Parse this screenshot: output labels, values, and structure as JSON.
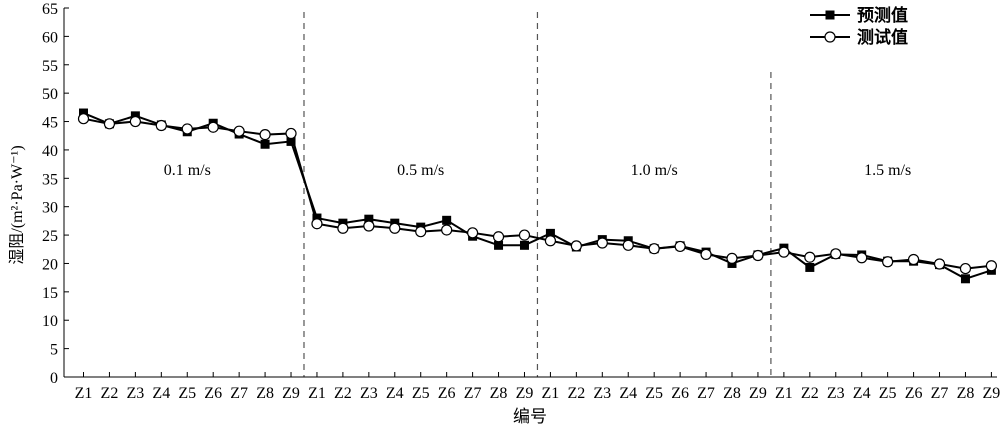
{
  "chart_data": {
    "type": "line",
    "xlabel": "编号",
    "ylabel": "湿阻/(m²·Pa·W⁻¹)",
    "ylim": [
      0,
      65
    ],
    "yticks": [
      0,
      5,
      10,
      15,
      20,
      25,
      30,
      35,
      40,
      45,
      50,
      55,
      60,
      65
    ],
    "categories": [
      "Z1",
      "Z2",
      "Z3",
      "Z4",
      "Z5",
      "Z6",
      "Z7",
      "Z8",
      "Z9",
      "Z1",
      "Z2",
      "Z3",
      "Z4",
      "Z5",
      "Z6",
      "Z7",
      "Z8",
      "Z9",
      "Z1",
      "Z2",
      "Z3",
      "Z4",
      "Z5",
      "Z6",
      "Z7",
      "Z8",
      "Z9",
      "Z1",
      "Z2",
      "Z3",
      "Z4",
      "Z5",
      "Z6",
      "Z7",
      "Z8",
      "Z9"
    ],
    "groups": [
      "0.1 m/s",
      "0.5 m/s",
      "1.0 m/s",
      "1.5 m/s"
    ],
    "legend_position": "top-right",
    "series": [
      {
        "name": "预测值",
        "marker": "filled-square",
        "values": [
          46.5,
          44.6,
          46.0,
          44.4,
          43.2,
          44.7,
          42.8,
          41.0,
          41.5,
          28.0,
          27.1,
          27.8,
          27.1,
          26.4,
          27.6,
          24.8,
          23.2,
          23.2,
          25.3,
          22.9,
          24.2,
          24.0,
          22.6,
          23.1,
          22.0,
          20.0,
          21.5,
          22.7,
          19.3,
          21.6,
          21.5,
          20.4,
          20.4,
          19.8,
          17.3,
          18.8
        ]
      },
      {
        "name": "测试值",
        "marker": "open-circle",
        "values": [
          45.5,
          44.6,
          45.0,
          44.3,
          43.7,
          44.0,
          43.3,
          42.7,
          42.9,
          27.0,
          26.2,
          26.6,
          26.2,
          25.6,
          25.9,
          25.4,
          24.7,
          25.0,
          24.0,
          23.1,
          23.6,
          23.2,
          22.6,
          23.0,
          21.6,
          20.9,
          21.4,
          22.0,
          21.1,
          21.7,
          21.0,
          20.3,
          20.7,
          19.9,
          19.1,
          19.6
        ]
      }
    ],
    "colors": {
      "axis": "#000000",
      "divider": "#555555",
      "line": "#000000",
      "marker_fill_open": "#ffffff"
    }
  }
}
